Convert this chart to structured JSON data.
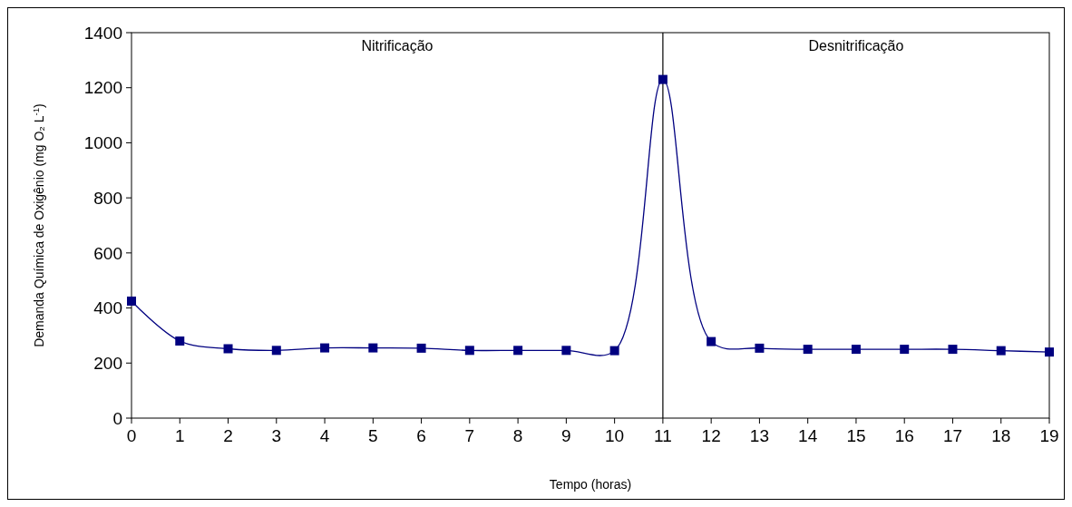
{
  "chart_data": {
    "type": "line",
    "xlabel": "Tempo (horas)",
    "ylabel": "Demanda Química de Oxigênio (mg O₂ L$^{-1}$)",
    "x": [
      0,
      1,
      2,
      3,
      4,
      5,
      6,
      7,
      8,
      9,
      10,
      11,
      12,
      13,
      14,
      15,
      16,
      17,
      18,
      19
    ],
    "series": [
      {
        "color": "#000080",
        "values": [
          425,
          280,
          252,
          246,
          255,
          255,
          254,
          246,
          246,
          246,
          245,
          1230,
          278,
          254,
          250,
          250,
          250,
          250,
          245,
          240
        ]
      }
    ],
    "xlim": [
      0,
      19
    ],
    "xticks": [
      0,
      1,
      2,
      3,
      4,
      5,
      6,
      7,
      8,
      9,
      10,
      11,
      12,
      13,
      14,
      15,
      16,
      17,
      18,
      19
    ],
    "ylim": [
      0,
      1400
    ],
    "yticks": [
      0,
      200,
      400,
      600,
      800,
      1000,
      1200,
      1400
    ],
    "marker": "square",
    "grid": false,
    "ref_lines": [
      {
        "axis": "x",
        "value": 11,
        "color": "#000000"
      }
    ],
    "annotations": [
      "Nitrificação",
      "Desnitrificação"
    ]
  }
}
